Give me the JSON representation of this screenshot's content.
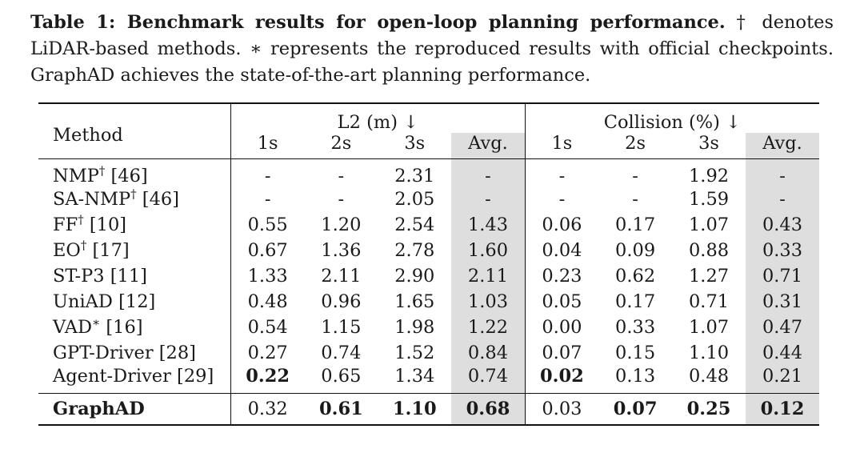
{
  "caption": {
    "title": "Table 1: Benchmark results for open-loop planning performance.",
    "text": " † denotes LiDAR-based methods. ∗ represents the reproduced results with official checkpoints. GraphAD achieves the state-of-the-art planning performance."
  },
  "table": {
    "method_header": "Method",
    "group_l2": "L2 (m) ↓",
    "group_collision": "Collision (%) ↓",
    "subheaders": [
      "1s",
      "2s",
      "3s",
      "Avg.",
      "1s",
      "2s",
      "3s",
      "Avg."
    ],
    "rows": [
      {
        "name": "NMP",
        "sup": "†",
        "ref": " [46]",
        "vals": [
          "-",
          "-",
          "2.31",
          "-",
          "-",
          "-",
          "1.92",
          "-"
        ]
      },
      {
        "name": "SA-NMP",
        "sup": "†",
        "ref": " [46]",
        "vals": [
          "-",
          "-",
          "2.05",
          "-",
          "-",
          "-",
          "1.59",
          "-"
        ]
      },
      {
        "name": "FF",
        "sup": "†",
        "ref": " [10]",
        "vals": [
          "0.55",
          "1.20",
          "2.54",
          "1.43",
          "0.06",
          "0.17",
          "1.07",
          "0.43"
        ]
      },
      {
        "name": "EO",
        "sup": "†",
        "ref": " [17]",
        "vals": [
          "0.67",
          "1.36",
          "2.78",
          "1.60",
          "0.04",
          "0.09",
          "0.88",
          "0.33"
        ]
      },
      {
        "name": "ST-P3",
        "sup": "",
        "ref": " [11]",
        "vals": [
          "1.33",
          "2.11",
          "2.90",
          "2.11",
          "0.23",
          "0.62",
          "1.27",
          "0.71"
        ]
      },
      {
        "name": "UniAD",
        "sup": "",
        "ref": " [12]",
        "vals": [
          "0.48",
          "0.96",
          "1.65",
          "1.03",
          "0.05",
          "0.17",
          "0.71",
          "0.31"
        ]
      },
      {
        "name": "VAD",
        "sup": "∗",
        "ref": " [16]",
        "vals": [
          "0.54",
          "1.15",
          "1.98",
          "1.22",
          "0.00",
          "0.33",
          "1.07",
          "0.47"
        ]
      },
      {
        "name": "GPT-Driver",
        "sup": "",
        "ref": " [28]",
        "vals": [
          "0.27",
          "0.74",
          "1.52",
          "0.84",
          "0.07",
          "0.15",
          "1.10",
          "0.44"
        ]
      },
      {
        "name": "Agent-Driver",
        "sup": "",
        "ref": " [29]",
        "vals": [
          "0.22",
          "0.65",
          "1.34",
          "0.74",
          "0.02",
          "0.13",
          "0.48",
          "0.21"
        ]
      }
    ],
    "final": {
      "name": "GraphAD",
      "vals": [
        "0.32",
        "0.61",
        "1.10",
        "0.68",
        "0.03",
        "0.07",
        "0.25",
        "0.12"
      ]
    }
  }
}
